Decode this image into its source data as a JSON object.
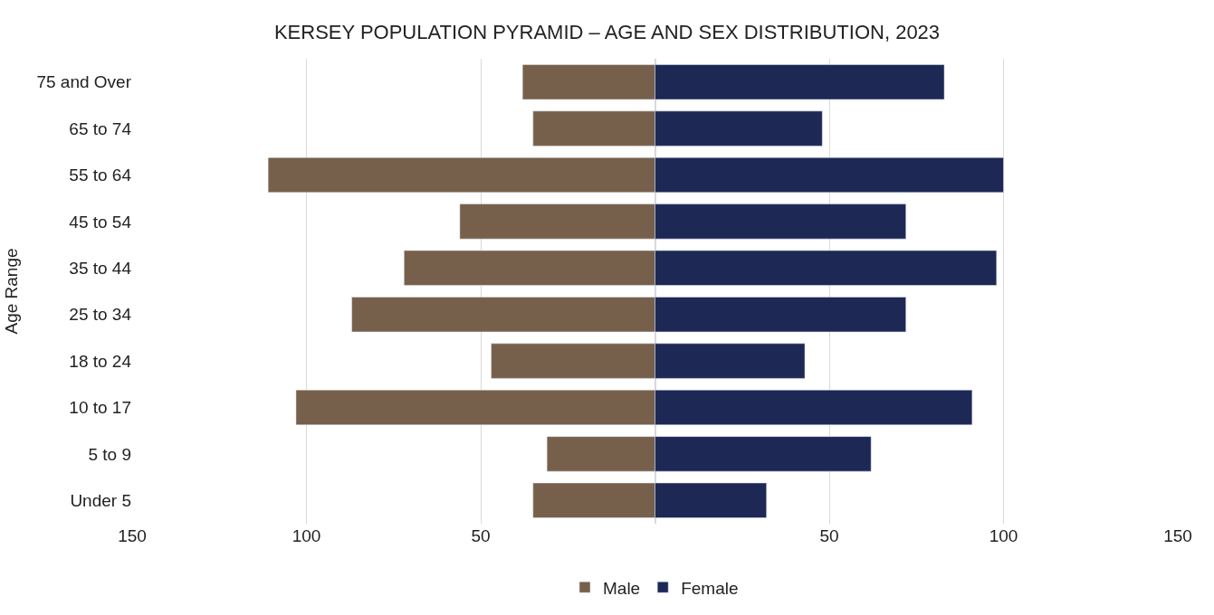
{
  "chart_data": {
    "type": "bar",
    "orientation": "horizontal",
    "title": "KERSEY POPULATION PYRAMID – AGE AND SEX DISTRIBUTION, 2023",
    "ylabel": "Age Range",
    "categories": [
      "75 and Over",
      "65 to 74",
      "55 to 64",
      "45 to 54",
      "35 to 44",
      "25 to 34",
      "18 to 24",
      "10 to 17",
      "5 to 9",
      "Under 5"
    ],
    "series": [
      {
        "name": "Male",
        "color": "#77604b",
        "values": [
          -38,
          -35,
          -111,
          -56,
          -72,
          -87,
          -47,
          -103,
          -31,
          -35
        ]
      },
      {
        "name": "Female",
        "color": "#1d2855",
        "values": [
          83,
          48,
          100,
          72,
          98,
          72,
          43,
          91,
          62,
          32
        ]
      }
    ],
    "xlim": [
      -150,
      150
    ],
    "xticks": [
      {
        "value": -150,
        "label": "150"
      },
      {
        "value": -100,
        "label": "100"
      },
      {
        "value": -50,
        "label": "50"
      },
      50,
      100,
      150
    ],
    "grid": "x",
    "legend": "bottom",
    "stacked": true
  }
}
